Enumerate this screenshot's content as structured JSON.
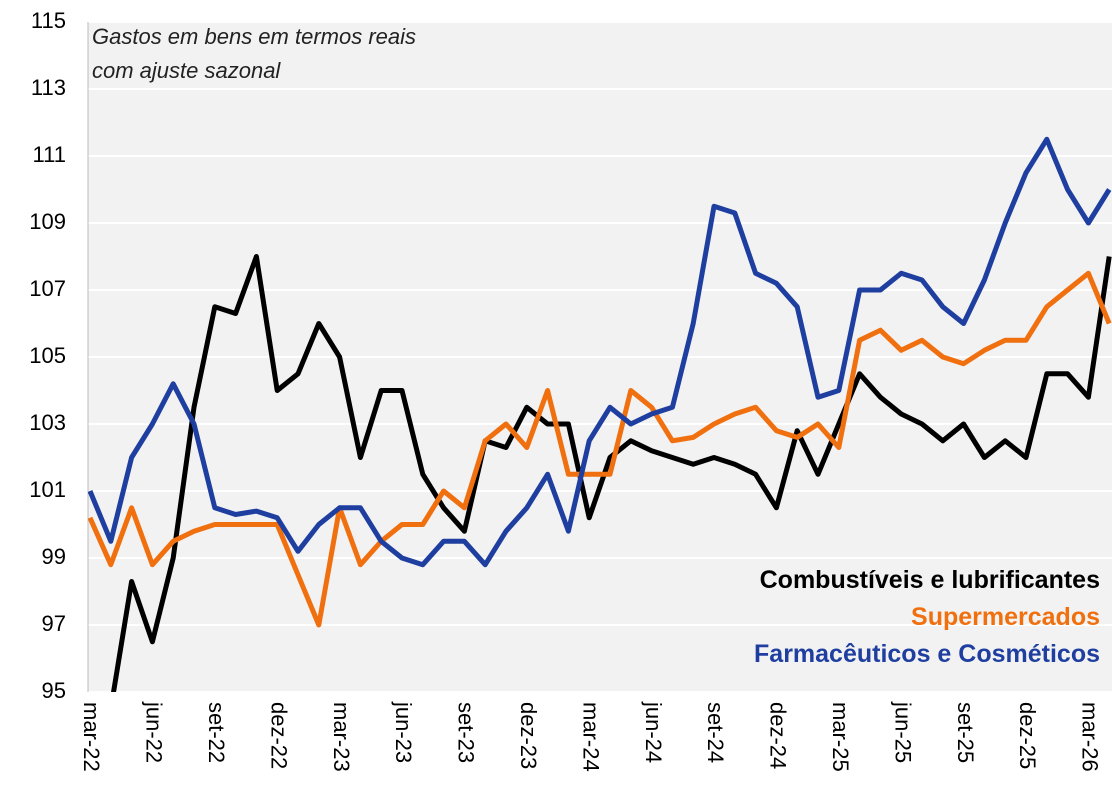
{
  "chart_data": {
    "type": "line",
    "title": "Gastos em bens em termos reais",
    "subtitle": "com ajuste sazonal",
    "categories": [
      "mar-22",
      null,
      null,
      "jun-22",
      null,
      null,
      "set-22",
      null,
      null,
      "dez-22",
      null,
      null,
      "mar-23",
      null,
      null,
      "jun-23",
      null,
      null,
      "set-23",
      null,
      null,
      "dez-23",
      null,
      null,
      "mar-24",
      null,
      null,
      "jun-24",
      null,
      null,
      "set-24",
      null,
      null,
      "dez-24",
      null,
      null,
      "mar-25",
      null,
      null,
      "jun-25",
      null,
      null,
      "set-25",
      null,
      null,
      "dez-25",
      null,
      null,
      "mar-26",
      null
    ],
    "series": [
      {
        "name": "Combustíveis e lubrificantes",
        "color": "#000000",
        "values": [
          93,
          94.5,
          98.3,
          96.5,
          99,
          103.5,
          106.5,
          106.3,
          108,
          104,
          104.5,
          106,
          105,
          102,
          104,
          104,
          101.5,
          100.5,
          99.8,
          102.5,
          102.3,
          103.5,
          103,
          103,
          100.2,
          102,
          102.5,
          102.2,
          102,
          101.8,
          102,
          101.8,
          101.5,
          100.5,
          102.8,
          101.5,
          103,
          104.5,
          103.8,
          103.3,
          103,
          102.5,
          103,
          102,
          102.5,
          102,
          104.5,
          104.5,
          103.8,
          108
        ]
      },
      {
        "name": "Supermercados",
        "color": "#f07010",
        "values": [
          100.2,
          98.8,
          100.5,
          98.8,
          99.5,
          99.8,
          100,
          100,
          100,
          100,
          98.5,
          97,
          100.5,
          98.8,
          99.5,
          100,
          100,
          101,
          100.5,
          102.5,
          103,
          102.3,
          104,
          101.5,
          101.5,
          101.5,
          104,
          103.5,
          102.5,
          102.6,
          103,
          103.3,
          103.5,
          102.8,
          102.6,
          103,
          102.3,
          105.5,
          105.8,
          105.2,
          105.5,
          105,
          104.8,
          105.2,
          105.5,
          105.5,
          106.5,
          107,
          107.5,
          106
        ]
      },
      {
        "name": "Farmacêuticos e Cosméticos",
        "color": "#1f3fa0",
        "values": [
          101,
          99.5,
          102,
          103,
          104.2,
          103,
          100.5,
          100.3,
          100.4,
          100.2,
          99.2,
          100,
          100.5,
          100.5,
          99.5,
          99,
          98.8,
          99.5,
          99.5,
          98.8,
          99.8,
          100.5,
          101.5,
          99.8,
          102.5,
          103.5,
          103,
          103.3,
          103.5,
          106,
          109.5,
          109.3,
          107.5,
          107.2,
          106.5,
          103.8,
          104,
          107,
          107,
          107.5,
          107.3,
          106.5,
          106,
          107.3,
          109,
          110.5,
          111.5,
          110,
          109,
          110
        ]
      }
    ],
    "ylim": [
      95,
      115
    ],
    "yticks": [
      95,
      97,
      99,
      101,
      103,
      105,
      107,
      109,
      111,
      113,
      115
    ],
    "grid": true
  }
}
